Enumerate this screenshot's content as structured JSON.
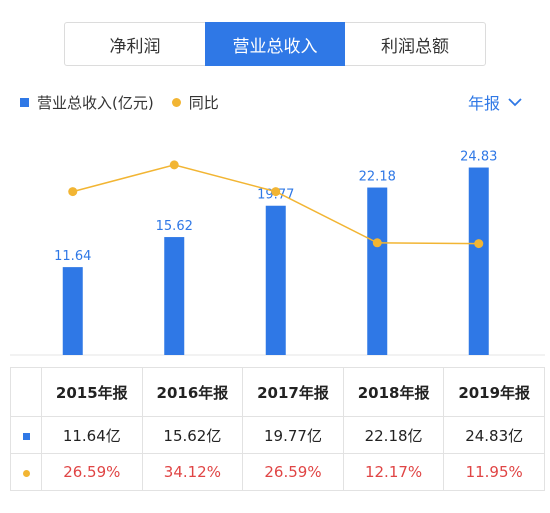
{
  "tabs": [
    {
      "label": "净利润",
      "active": false
    },
    {
      "label": "营业总收入",
      "active": true
    },
    {
      "label": "利润总额",
      "active": false
    }
  ],
  "legend": {
    "bar_label": "营业总收入(亿元)",
    "line_label": "同比"
  },
  "period_selector": {
    "label": "年报",
    "icon": "chevron-down-icon"
  },
  "colors": {
    "bar": "#2f78e6",
    "line": "#f2b533",
    "pct_text": "#e04545"
  },
  "chart_data": {
    "type": "bar",
    "categories": [
      "2015年报",
      "2016年报",
      "2017年报",
      "2018年报",
      "2019年报"
    ],
    "series": [
      {
        "name": "营业总收入(亿元)",
        "type": "bar",
        "values": [
          11.64,
          15.62,
          19.77,
          22.18,
          24.83
        ]
      },
      {
        "name": "同比",
        "type": "line",
        "values": [
          26.59,
          34.12,
          26.59,
          12.17,
          11.95
        ]
      }
    ],
    "data_labels": [
      "11.64",
      "15.62",
      "19.77",
      "22.18",
      "24.83"
    ],
    "grid": false,
    "legend_position": "top-left"
  },
  "table": {
    "header": [
      "2015年报",
      "2016年报",
      "2017年报",
      "2018年报",
      "2019年报"
    ],
    "revenue": [
      "11.64亿",
      "15.62亿",
      "19.77亿",
      "22.18亿",
      "24.83亿"
    ],
    "growth": [
      "26.59%",
      "34.12%",
      "26.59%",
      "12.17%",
      "11.95%"
    ]
  }
}
